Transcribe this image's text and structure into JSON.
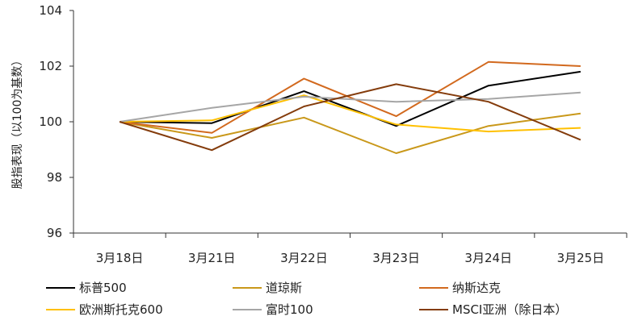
{
  "chart_data": {
    "type": "line",
    "title": "",
    "xlabel": "",
    "ylabel": "股指表现（以100为基数）",
    "categories": [
      "3月18日",
      "3月21日",
      "3月22日",
      "3月23日",
      "3月24日",
      "3月25日"
    ],
    "ylim": [
      96,
      104
    ],
    "yticks": [
      96,
      98,
      100,
      102,
      104
    ],
    "grid": false,
    "legend_position": "bottom",
    "series": [
      {
        "name": "标普500",
        "color": "#000000",
        "values": [
          100.0,
          99.95,
          101.1,
          99.85,
          101.3,
          101.8
        ]
      },
      {
        "name": "道琼斯",
        "color": "#C9981A",
        "values": [
          100.0,
          99.42,
          100.15,
          98.87,
          99.85,
          100.3
        ]
      },
      {
        "name": "纳斯达克",
        "color": "#D2691E",
        "values": [
          100.0,
          99.6,
          101.55,
          100.2,
          102.15,
          102.0
        ]
      },
      {
        "name": "欧洲斯托克600",
        "color": "#FFC000",
        "values": [
          100.0,
          100.05,
          100.95,
          99.9,
          99.65,
          99.78
        ]
      },
      {
        "name": "富时100",
        "color": "#A6A6A6",
        "values": [
          100.0,
          100.5,
          100.9,
          100.72,
          100.82,
          101.05
        ]
      },
      {
        "name": "MSCI亚洲（除日本）",
        "color": "#843C0C",
        "values": [
          100.0,
          98.98,
          100.55,
          101.35,
          100.72,
          99.35
        ]
      }
    ]
  }
}
